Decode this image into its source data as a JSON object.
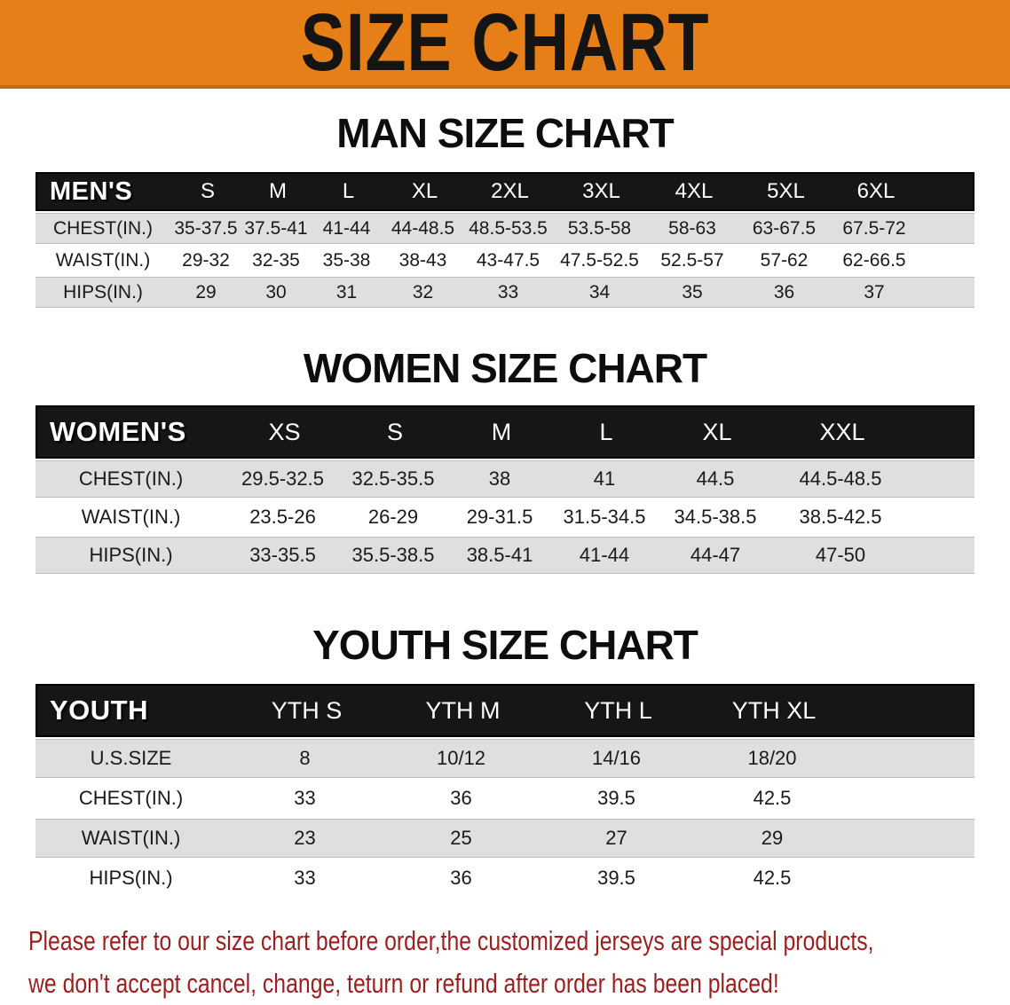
{
  "banner": {
    "title": "SIZE CHART",
    "bg_color": "#E67F17",
    "text_color": "#141414"
  },
  "colors": {
    "table_header_bg": "#161616",
    "row_stripe_gray": "#DFDFDF",
    "footer_text": "#9A1F1F"
  },
  "sections": [
    {
      "title": "MAN SIZE CHART",
      "header_label": "MEN'S",
      "columns": [
        "S",
        "M",
        "L",
        "XL",
        "2XL",
        "3XL",
        "4XL",
        "5XL",
        "6XL"
      ],
      "rows": [
        {
          "label": "CHEST(IN.)",
          "values": [
            "35-37.5",
            "37.5-41",
            "41-44",
            "44-48.5",
            "48.5-53.5",
            "53.5-58",
            "58-63",
            "63-67.5",
            "67.5-72"
          ]
        },
        {
          "label": "WAIST(IN.)",
          "values": [
            "29-32",
            "32-35",
            "35-38",
            "38-43",
            "43-47.5",
            "47.5-52.5",
            "52.5-57",
            "57-62",
            "62-66.5"
          ]
        },
        {
          "label": "HIPS(IN.)",
          "values": [
            "29",
            "30",
            "31",
            "32",
            "33",
            "34",
            "35",
            "36",
            "37"
          ]
        }
      ]
    },
    {
      "title": "WOMEN SIZE CHART",
      "header_label": "WOMEN'S",
      "columns": [
        "XS",
        "S",
        "M",
        "L",
        "XL",
        "XXL"
      ],
      "rows": [
        {
          "label": "CHEST(IN.)",
          "values": [
            "29.5-32.5",
            "32.5-35.5",
            "38",
            "41",
            "44.5",
            "44.5-48.5"
          ]
        },
        {
          "label": "WAIST(IN.)",
          "values": [
            "23.5-26",
            "26-29",
            "29-31.5",
            "31.5-34.5",
            "34.5-38.5",
            "38.5-42.5"
          ]
        },
        {
          "label": "HIPS(IN.)",
          "values": [
            "33-35.5",
            "35.5-38.5",
            "38.5-41",
            "41-44",
            "44-47",
            "47-50"
          ]
        }
      ]
    },
    {
      "title": "YOUTH SIZE CHART",
      "header_label": "YOUTH",
      "columns": [
        "YTH S",
        "YTH M",
        "YTH L",
        "YTH XL"
      ],
      "rows": [
        {
          "label": "U.S.SIZE",
          "values": [
            "8",
            "10/12",
            "14/16",
            "18/20"
          ]
        },
        {
          "label": "CHEST(IN.)",
          "values": [
            "33",
            "36",
            "39.5",
            "42.5"
          ]
        },
        {
          "label": "WAIST(IN.)",
          "values": [
            "23",
            "25",
            "27",
            "29"
          ]
        },
        {
          "label": "HIPS(IN.)",
          "values": [
            "33",
            "36",
            "39.5",
            "42.5"
          ]
        }
      ]
    }
  ],
  "footer": {
    "line1": "Please refer to our size chart before order,the customized jerseys are special products,",
    "line2": "we don't accept cancel, change, teturn or refund after order has been placed!"
  }
}
